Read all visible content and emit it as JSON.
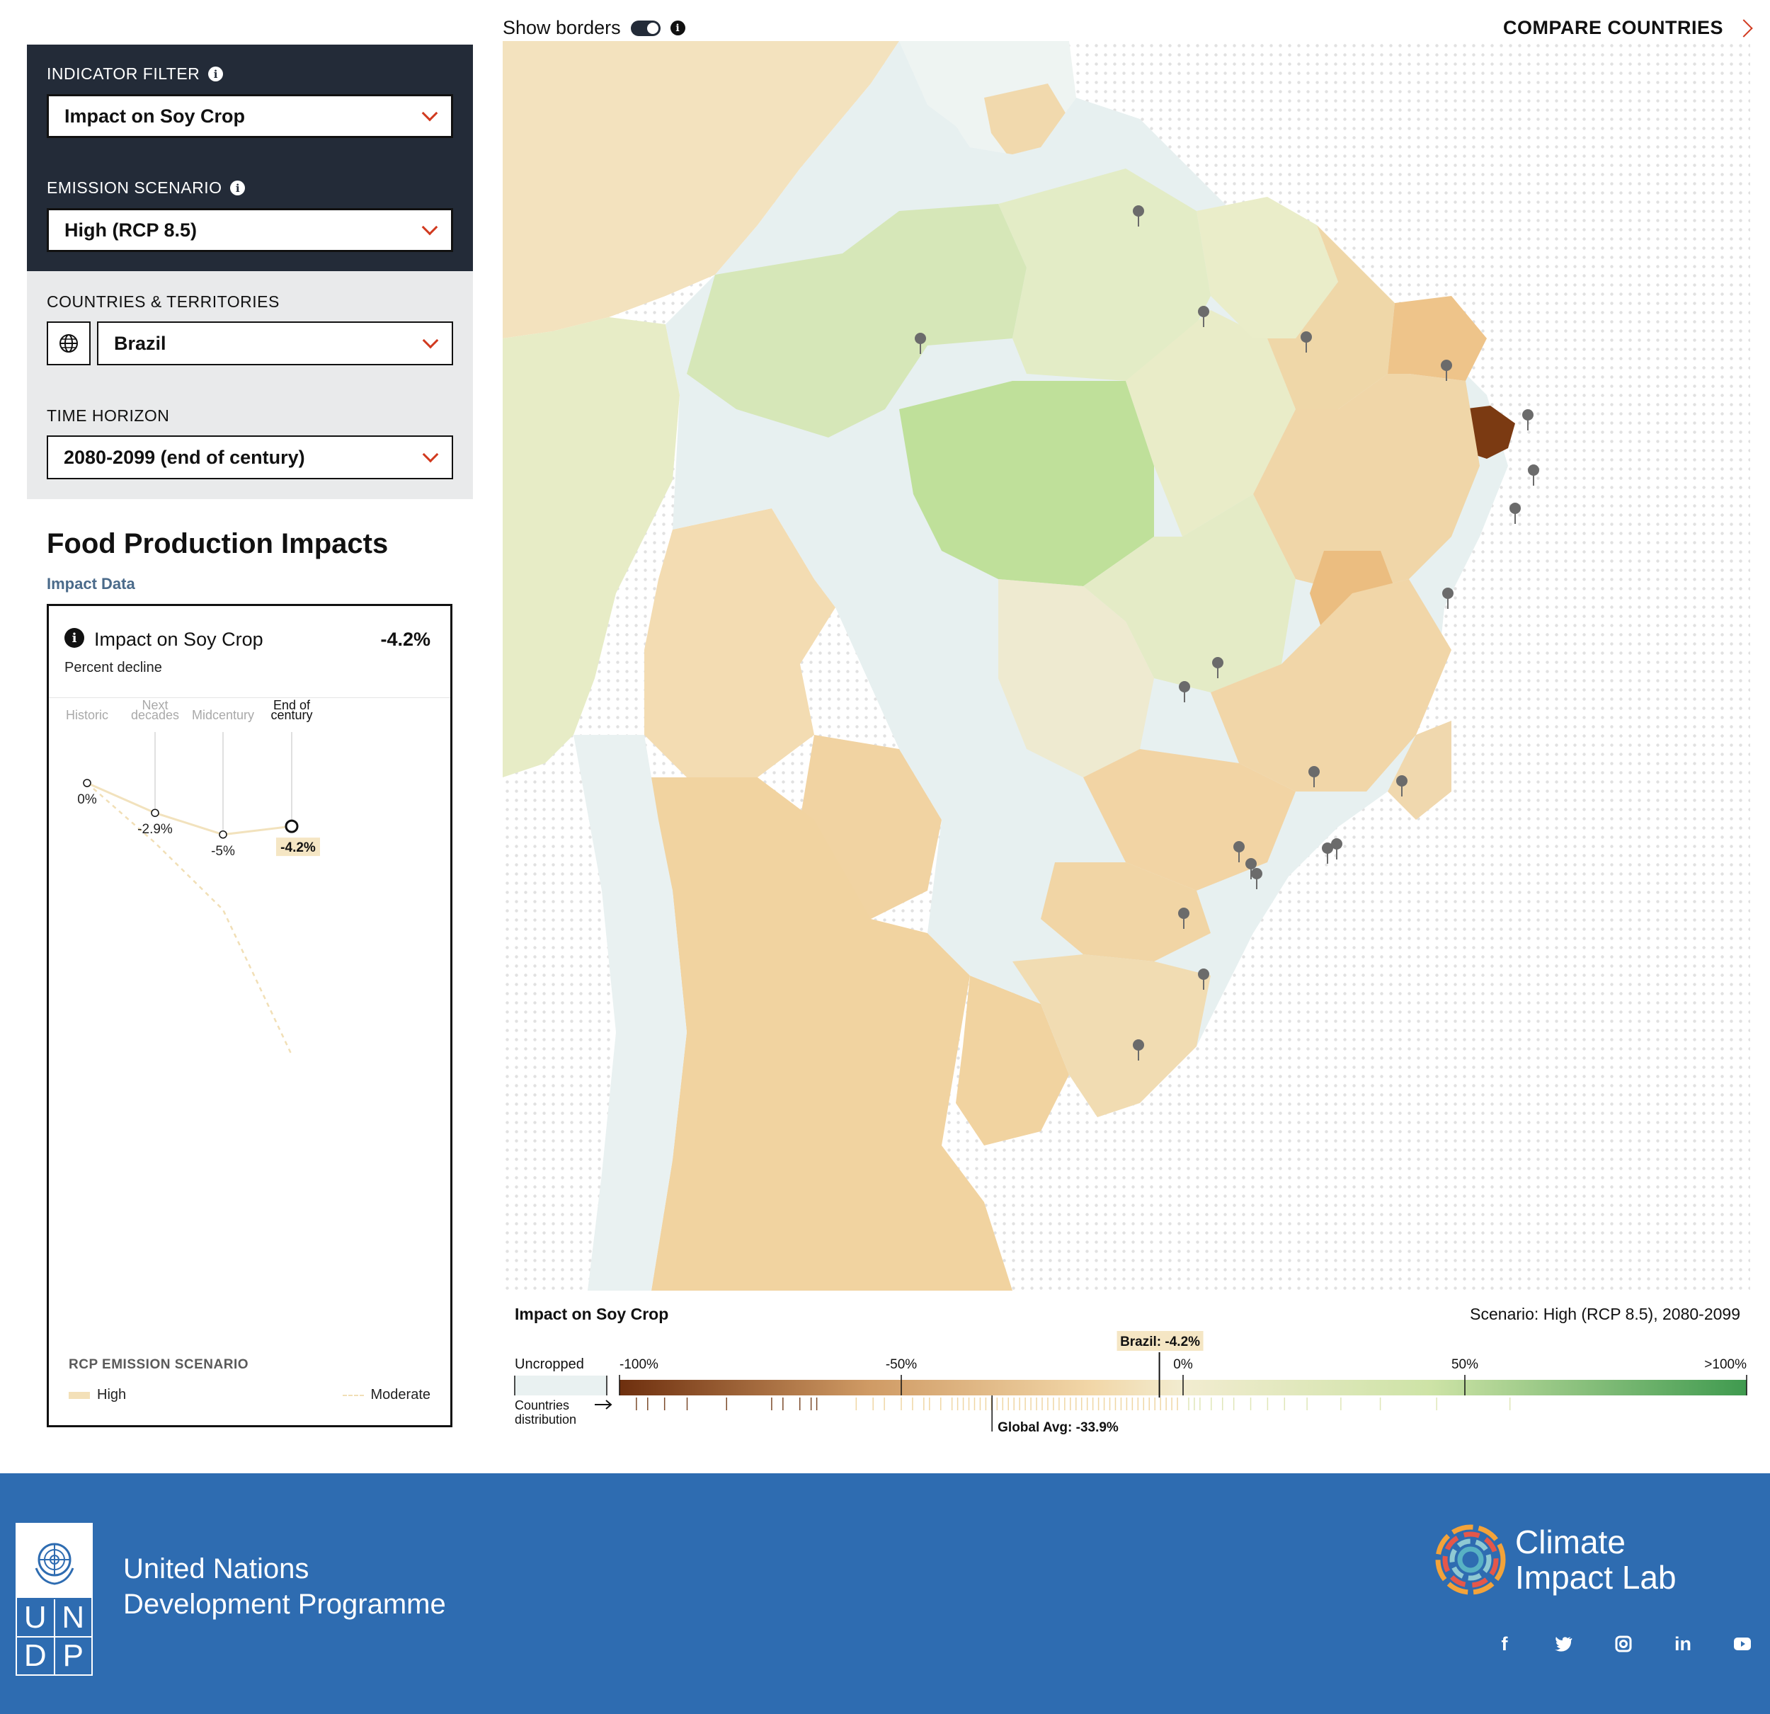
{
  "filters": {
    "indicator_label": "INDICATOR FILTER",
    "indicator_value": "Impact on Soy Crop",
    "scenario_label": "EMISSION SCENARIO",
    "scenario_value": "High (RCP 8.5)",
    "countries_label": "COUNTRIES & TERRITORIES",
    "country_value": "Brazil",
    "horizon_label": "TIME HORIZON",
    "horizon_value": "2080-2099 (end of century)"
  },
  "food_production": {
    "title": "Food Production Impacts",
    "subtitle": "Impact Data",
    "card_title": "Impact on Soy Crop",
    "card_value": "-4.2%",
    "card_unit": "Percent decline",
    "periods": [
      "Historic",
      "Next decades",
      "Midcentury",
      "End of century"
    ],
    "high_labels": [
      "0%",
      "-2.9%",
      "-5%",
      "-4.2%"
    ],
    "legend_title": "RCP EMISSION SCENARIO",
    "legend_high": "High",
    "legend_moderate": "Moderate"
  },
  "chart_data": {
    "type": "line",
    "x": [
      "Historic",
      "Next decades",
      "Midcentury",
      "End of century"
    ],
    "series": [
      {
        "name": "High",
        "values": [
          0,
          -2.9,
          -5,
          -4.2
        ]
      },
      {
        "name": "Moderate",
        "values": [
          0,
          -5.8,
          -12.3,
          -26.4
        ]
      }
    ]
  },
  "topbar": {
    "show_borders": "Show borders",
    "compare": "COMPARE COUNTRIES"
  },
  "color_legend": {
    "title": "Impact on Soy Crop",
    "scenario": "Scenario: High (RCP 8.5), 2080-2099",
    "uncropped": "Uncropped",
    "countries_distribution": "Countries distribution",
    "ticks": [
      "-100%",
      "-50%",
      "0%",
      "50%",
      ">100%"
    ],
    "brazil_marker": "Brazil: -4.2%",
    "global_avg": "Global Avg: -33.9%",
    "brazil_value": -4.2,
    "global_avg_value": -33.9
  },
  "footer": {
    "undp_line1": "United Nations",
    "undp_line2": "Development Programme",
    "undp_letters": [
      "U",
      "N",
      "D",
      "P"
    ],
    "cil_line1": "Climate",
    "cil_line2": "Impact Lab",
    "social_icons": [
      "facebook-icon",
      "twitter-icon",
      "instagram-icon",
      "linkedin-icon",
      "youtube-icon"
    ]
  },
  "colors": {
    "panel_dark": "#232b38",
    "accent_red": "#d13a1f",
    "footer_blue": "#2e6cb1",
    "uncropped": "#e9f1f1",
    "decline_dark": "#7b3a12",
    "decline_light": "#f2d6a6",
    "gain_light": "#dfe8bd",
    "gain_dark": "#4aa05a"
  }
}
